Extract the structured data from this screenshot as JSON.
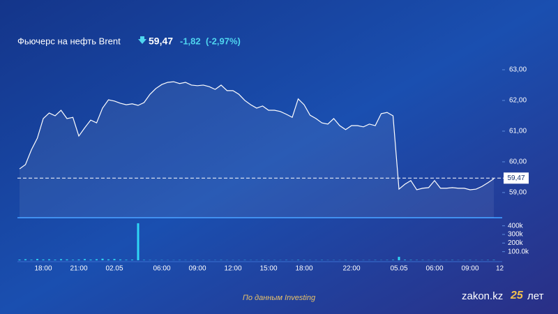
{
  "chart_data": {
    "type": "line",
    "title": "Фьючерс на нефть Brent",
    "last_price": {
      "value": 59.47,
      "label": "59,47"
    },
    "change": "-1,82",
    "change_pct": "(-2,97%)",
    "categories": [
      null,
      null,
      null,
      null,
      "18:00",
      null,
      null,
      null,
      null,
      null,
      "21:00",
      null,
      null,
      null,
      null,
      null,
      "02.05",
      null,
      null,
      null,
      null,
      null,
      null,
      null,
      "06:00",
      null,
      null,
      null,
      null,
      null,
      "09:00",
      null,
      null,
      null,
      null,
      null,
      "12:00",
      null,
      null,
      null,
      null,
      null,
      "15:00",
      null,
      null,
      null,
      null,
      null,
      "18:00",
      null,
      null,
      null,
      null,
      null,
      null,
      null,
      "22:00",
      null,
      null,
      null,
      null,
      null,
      null,
      null,
      "05.05",
      null,
      null,
      null,
      null,
      null,
      "06:00",
      null,
      null,
      null,
      null,
      null,
      "09:00",
      null,
      null,
      null,
      null,
      "12"
    ],
    "series": [
      {
        "color": "#ffffff",
        "values": [
          59.77,
          59.91,
          60.39,
          60.77,
          61.41,
          61.59,
          61.5,
          61.68,
          61.41,
          61.45,
          60.84,
          61.11,
          61.36,
          61.27,
          61.75,
          62.02,
          61.98,
          61.91,
          61.86,
          61.89,
          61.84,
          61.93,
          62.2,
          62.39,
          62.52,
          62.59,
          62.61,
          62.55,
          62.59,
          62.5,
          62.48,
          62.5,
          62.45,
          62.36,
          62.5,
          62.32,
          62.32,
          62.2,
          62.0,
          61.86,
          61.75,
          61.82,
          61.68,
          61.68,
          61.64,
          61.55,
          61.45,
          62.05,
          61.86,
          61.52,
          61.41,
          61.27,
          61.23,
          61.41,
          61.18,
          61.05,
          61.18,
          61.18,
          61.14,
          61.23,
          61.18,
          61.57,
          61.61,
          61.5,
          59.11,
          59.27,
          59.39,
          59.09,
          59.14,
          59.16,
          59.39,
          59.14,
          59.14,
          59.16,
          59.14,
          59.14,
          59.09,
          59.11,
          59.2,
          59.32,
          59.45,
          null
        ]
      }
    ],
    "ylim": [
      58.18,
      63.34
    ],
    "yticks": [
      {
        "value": 59,
        "label": "59,00"
      },
      {
        "value": 60,
        "label": "60,00"
      },
      {
        "value": 61,
        "label": "61,00"
      },
      {
        "value": 62,
        "label": "62,00"
      },
      {
        "value": 63,
        "label": "63,00"
      }
    ],
    "volume": {
      "color": "#2fd6f5",
      "values": [
        8000,
        12000,
        6000,
        15000,
        9000,
        11000,
        7000,
        13000,
        10000,
        6000,
        9000,
        14000,
        8000,
        12000,
        18000,
        10000,
        15000,
        9000,
        6000,
        7000,
        430000,
        4000,
        3000,
        2000,
        3000,
        2000,
        2000,
        3000,
        2000,
        2000,
        3000,
        2000,
        2000,
        2000,
        3000,
        2000,
        2000,
        2000,
        3000,
        2000,
        2000,
        3000,
        2000,
        2000,
        2000,
        3000,
        2000,
        4000,
        3000,
        2000,
        2000,
        3000,
        2000,
        2000,
        2000,
        3000,
        2000,
        2000,
        2000,
        2000,
        3000,
        2000,
        3000,
        5000,
        40000,
        6000,
        4000,
        3000,
        3000,
        2000,
        3000,
        2000,
        2000,
        3000,
        2000,
        2000,
        3000,
        2000,
        2000,
        3000,
        4000,
        null
      ]
    },
    "y2lim": [
      0,
      470000
    ],
    "y2ticks": [
      {
        "value": 100000,
        "label": "100.0k"
      },
      {
        "value": 200000,
        "label": "200k"
      },
      {
        "value": 300000,
        "label": "300k"
      },
      {
        "value": 400000,
        "label": "400k"
      }
    ],
    "source": "По данным Investing",
    "brand": {
      "name": "zakon.kz",
      "badge": "25",
      "suffix": "лет"
    }
  }
}
